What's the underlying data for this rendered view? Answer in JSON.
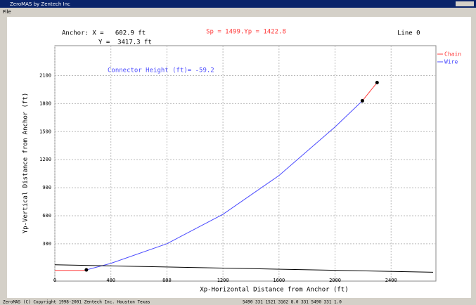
{
  "window": {
    "title": "ZeroMAS by Zentech Inc",
    "menu": [
      "File"
    ]
  },
  "status_bar": [
    "ZeroMAS (C) Copyright 1998-2001 Zentech Inc. Houston Texas",
    "5490 331 1521 3162 8.0 331 5490 331 1.0"
  ],
  "chart_data": {
    "type": "line",
    "annotations": [
      "Anchor: X =   602.9 ft",
      "Y =  3417.3 ft",
      "Sp = 1499.Yp = 1422.8",
      "Line 0",
      "Connector Height (ft)= -59.2"
    ],
    "xlabel": "Xp-Horizontal Distance from Anchor (ft)",
    "ylabel": "Yp-Vertical Distance from Anchor (ft)",
    "xlim": [
      0,
      2720
    ],
    "ylim": [
      -100,
      2420
    ],
    "xticks": [
      0,
      400,
      800,
      1200,
      1600,
      2000,
      2400
    ],
    "yticks": [
      300,
      600,
      900,
      1200,
      1500,
      1800,
      2100
    ],
    "grid": true,
    "legend": "top-right",
    "series": [
      {
        "name": "Chain",
        "color": "#ff3b3b",
        "x": [
          0,
          225,
          null,
          2195,
          2300
        ],
        "values": [
          15,
          15,
          null,
          1830,
          2025
        ]
      },
      {
        "name": "Wire",
        "color": "#4b4bff",
        "x": [
          225,
          400,
          800,
          1200,
          1600,
          2000,
          2195
        ],
        "values": [
          20,
          90,
          300,
          615,
          1030,
          1550,
          1830
        ]
      },
      {
        "color": "#000000",
        "x": [
          0,
          2700
        ],
        "values": [
          75,
          -5
        ]
      },
      {
        "color": "#000000",
        "marker": true,
        "x": [
          225,
          2195,
          2300
        ],
        "values": [
          20,
          1830,
          2025
        ]
      }
    ]
  }
}
